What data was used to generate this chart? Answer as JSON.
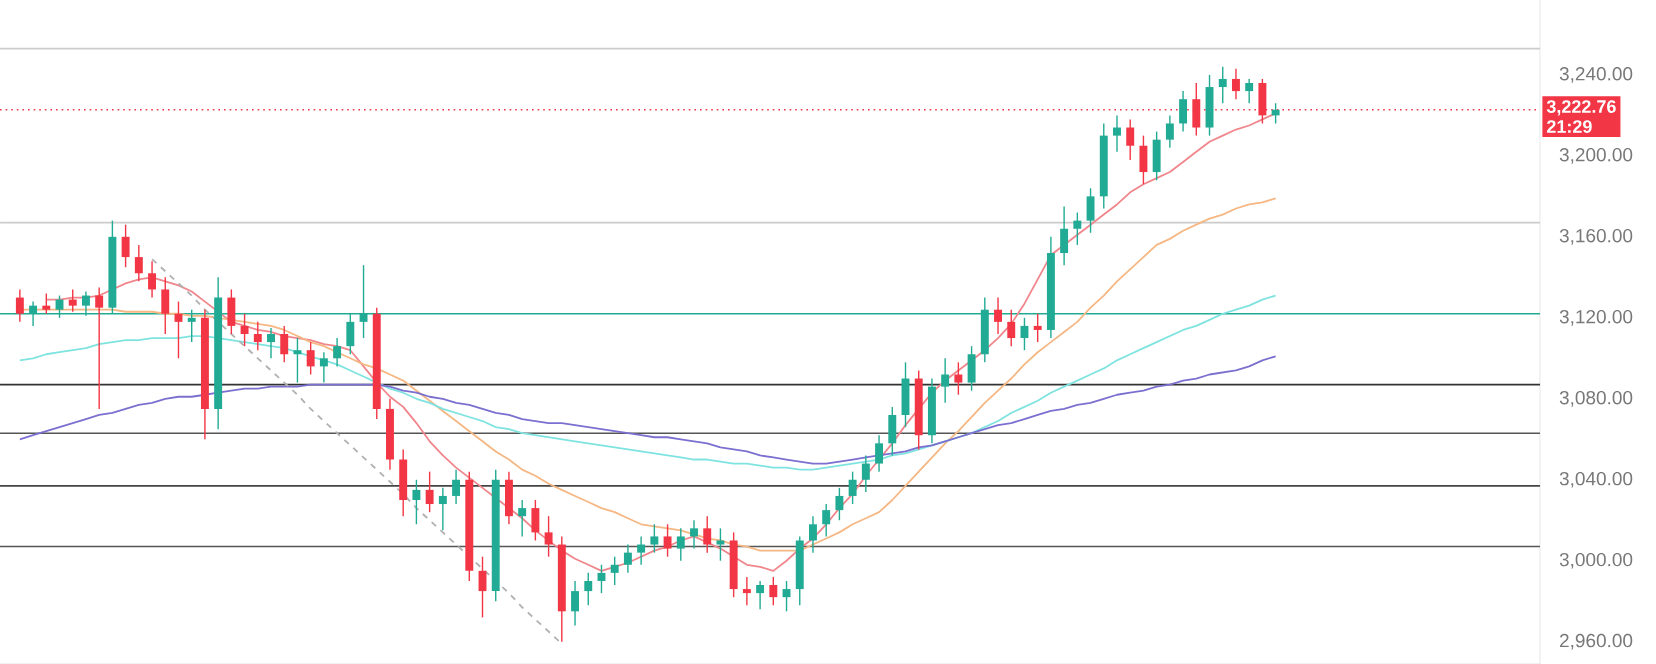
{
  "chart_data": {
    "type": "candlestick",
    "categories": [
      null,
      null,
      null,
      null,
      null,
      null,
      null,
      null,
      null,
      null,
      null,
      null,
      null,
      null,
      null,
      null,
      null,
      null,
      null,
      null,
      null,
      null,
      null,
      null,
      null,
      null,
      null,
      null,
      null,
      null,
      null,
      null,
      null,
      null,
      null,
      null,
      null,
      null,
      null,
      null,
      null,
      null,
      null,
      null,
      null,
      null,
      null,
      null,
      null,
      null,
      null,
      null,
      null,
      null,
      null,
      null,
      null,
      null,
      null,
      null,
      null,
      null,
      null,
      null,
      null,
      null,
      null,
      null,
      null,
      null,
      null,
      null,
      null,
      null,
      null,
      null,
      null,
      null,
      null,
      null,
      null,
      null,
      null,
      null,
      null,
      null,
      null,
      null,
      null,
      null,
      null,
      null,
      null,
      null,
      null,
      null
    ],
    "ohlc": [
      [
        3130,
        3134,
        3118,
        3122
      ],
      [
        3122,
        3128,
        3116,
        3126
      ],
      [
        3126,
        3132,
        3122,
        3124
      ],
      [
        3124,
        3131,
        3120,
        3129
      ],
      [
        3129,
        3134,
        3123,
        3126
      ],
      [
        3126,
        3133,
        3121,
        3131
      ],
      [
        3131,
        3135,
        3075,
        3125
      ],
      [
        3125,
        3168,
        3122,
        3160
      ],
      [
        3160,
        3166,
        3145,
        3150
      ],
      [
        3150,
        3156,
        3138,
        3142
      ],
      [
        3142,
        3148,
        3130,
        3134
      ],
      [
        3134,
        3140,
        3112,
        3122
      ],
      [
        3122,
        3128,
        3100,
        3118
      ],
      [
        3118,
        3124,
        3108,
        3120
      ],
      [
        3120,
        3124,
        3060,
        3075
      ],
      [
        3075,
        3140,
        3065,
        3130
      ],
      [
        3130,
        3134,
        3112,
        3116
      ],
      [
        3116,
        3122,
        3106,
        3112
      ],
      [
        3112,
        3118,
        3104,
        3108
      ],
      [
        3108,
        3115,
        3100,
        3112
      ],
      [
        3112,
        3116,
        3098,
        3102
      ],
      [
        3102,
        3110,
        3088,
        3104
      ],
      [
        3104,
        3108,
        3092,
        3096
      ],
      [
        3096,
        3103,
        3088,
        3100
      ],
      [
        3100,
        3110,
        3096,
        3106
      ],
      [
        3106,
        3122,
        3102,
        3118
      ],
      [
        3118,
        3146,
        3110,
        3122
      ],
      [
        3122,
        3125,
        3070,
        3075
      ],
      [
        3075,
        3080,
        3045,
        3050
      ],
      [
        3050,
        3055,
        3022,
        3030
      ],
      [
        3030,
        3040,
        3018,
        3035
      ],
      [
        3035,
        3044,
        3024,
        3028
      ],
      [
        3028,
        3036,
        3015,
        3032
      ],
      [
        3032,
        3045,
        3028,
        3040
      ],
      [
        3040,
        3044,
        2990,
        2995
      ],
      [
        2995,
        3002,
        2972,
        2985
      ],
      [
        2985,
        3045,
        2980,
        3040
      ],
      [
        3040,
        3044,
        3018,
        3022
      ],
      [
        3022,
        3030,
        3012,
        3026
      ],
      [
        3026,
        3030,
        3010,
        3014
      ],
      [
        3014,
        3022,
        3002,
        3008
      ],
      [
        3008,
        3012,
        2960,
        2975
      ],
      [
        2975,
        2990,
        2968,
        2985
      ],
      [
        2985,
        2994,
        2978,
        2990
      ],
      [
        2990,
        2998,
        2984,
        2994
      ],
      [
        2994,
        3002,
        2988,
        2998
      ],
      [
        2998,
        3008,
        2994,
        3004
      ],
      [
        3004,
        3012,
        2998,
        3008
      ],
      [
        3008,
        3018,
        3004,
        3012
      ],
      [
        3012,
        3018,
        3002,
        3006
      ],
      [
        3006,
        3016,
        3000,
        3012
      ],
      [
        3012,
        3020,
        3006,
        3016
      ],
      [
        3016,
        3022,
        3004,
        3008
      ],
      [
        3008,
        3016,
        3000,
        3010
      ],
      [
        3010,
        3014,
        2982,
        2986
      ],
      [
        2986,
        2992,
        2978,
        2984
      ],
      [
        2984,
        2990,
        2976,
        2988
      ],
      [
        2988,
        2992,
        2978,
        2982
      ],
      [
        2982,
        2990,
        2975,
        2986
      ],
      [
        2986,
        3012,
        2978,
        3010
      ],
      [
        3010,
        3022,
        3004,
        3018
      ],
      [
        3018,
        3028,
        3012,
        3025
      ],
      [
        3025,
        3036,
        3020,
        3032
      ],
      [
        3032,
        3044,
        3028,
        3040
      ],
      [
        3040,
        3052,
        3034,
        3048
      ],
      [
        3048,
        3062,
        3044,
        3058
      ],
      [
        3058,
        3076,
        3052,
        3072
      ],
      [
        3072,
        3098,
        3066,
        3090
      ],
      [
        3090,
        3094,
        3055,
        3062
      ],
      [
        3062,
        3090,
        3058,
        3086
      ],
      [
        3086,
        3100,
        3078,
        3092
      ],
      [
        3092,
        3098,
        3082,
        3088
      ],
      [
        3088,
        3106,
        3084,
        3102
      ],
      [
        3102,
        3130,
        3098,
        3124
      ],
      [
        3124,
        3130,
        3112,
        3118
      ],
      [
        3118,
        3124,
        3106,
        3110
      ],
      [
        3110,
        3120,
        3104,
        3116
      ],
      [
        3116,
        3122,
        3108,
        3114
      ],
      [
        3114,
        3160,
        3110,
        3152
      ],
      [
        3152,
        3175,
        3146,
        3164
      ],
      [
        3164,
        3172,
        3156,
        3168
      ],
      [
        3168,
        3184,
        3162,
        3180
      ],
      [
        3180,
        3216,
        3174,
        3210
      ],
      [
        3210,
        3220,
        3202,
        3214
      ],
      [
        3214,
        3218,
        3198,
        3205
      ],
      [
        3205,
        3210,
        3186,
        3192
      ],
      [
        3192,
        3212,
        3188,
        3208
      ],
      [
        3208,
        3220,
        3204,
        3216
      ],
      [
        3216,
        3232,
        3212,
        3228
      ],
      [
        3228,
        3236,
        3210,
        3214
      ],
      [
        3214,
        3240,
        3210,
        3234
      ],
      [
        3234,
        3244,
        3226,
        3238
      ],
      [
        3238,
        3243,
        3228,
        3232
      ],
      [
        3232,
        3238,
        3226,
        3236
      ],
      [
        3236,
        3238,
        3216,
        3220
      ],
      [
        3220,
        3226,
        3216,
        3222.76
      ]
    ],
    "series": [
      {
        "type": "line",
        "color": "#f0868c",
        "values": [
          null,
          null,
          3129,
          3129,
          3130,
          3130,
          3131,
          3134,
          3137,
          3139,
          3140,
          3138,
          3136,
          3133,
          3128,
          3123,
          3118,
          3116,
          3114,
          3113,
          3111,
          3110,
          3109,
          3107,
          3106,
          3104,
          3096,
          3088,
          3081,
          3076,
          3068,
          3059,
          3052,
          3046,
          3041,
          3036,
          3031,
          3026,
          3021,
          3015,
          3010,
          3005,
          3001,
          2998,
          2995,
          2997,
          2999,
          3002,
          3005,
          3007,
          3010,
          3012,
          3009,
          3006,
          3002,
          2998,
          2997,
          2995,
          3000,
          3006,
          3011,
          3018,
          3026,
          3033,
          3042,
          3050,
          3058,
          3067,
          3075,
          3083,
          3089,
          3094,
          3099,
          3104,
          3110,
          3117,
          3127,
          3139,
          3151,
          3156,
          3161,
          3166,
          3171,
          3176,
          3182,
          3186,
          3189,
          3192,
          3197,
          3202,
          3207,
          3210,
          3213,
          3215,
          3218,
          3221
        ]
      },
      {
        "type": "line",
        "color": "#f5b783",
        "values": [
          3124,
          3124,
          3124,
          3124,
          3124,
          3124,
          3124,
          3124,
          3123,
          3123,
          3123,
          3122,
          3122,
          3121,
          3121,
          3120,
          3119,
          3118,
          3117,
          3116,
          3114,
          3111,
          3108,
          3106,
          3103,
          3100,
          3097,
          3095,
          3092,
          3089,
          3084,
          3079,
          3074,
          3069,
          3064,
          3059,
          3054,
          3050,
          3045,
          3042,
          3038,
          3035,
          3032,
          3029,
          3026,
          3024,
          3021,
          3018,
          3017,
          3016,
          3015,
          3013,
          3011,
          3010,
          3008,
          3007,
          3005,
          3005,
          3005,
          3005,
          3008,
          3011,
          3014,
          3018,
          3021,
          3024,
          3030,
          3037,
          3044,
          3051,
          3058,
          3064,
          3071,
          3078,
          3084,
          3090,
          3097,
          3103,
          3108,
          3113,
          3118,
          3125,
          3131,
          3138,
          3144,
          3150,
          3156,
          3159,
          3163,
          3166,
          3169,
          3171,
          3174,
          3176,
          3177,
          3179
        ]
      },
      {
        "type": "line",
        "color": "#7fe3e0",
        "values": [
          3099,
          3100,
          3102,
          3103,
          3104,
          3105,
          3107,
          3108,
          3109,
          3109,
          3110,
          3110,
          3110,
          3111,
          3111,
          3110,
          3109,
          3108,
          3107,
          3106,
          3105,
          3103,
          3101,
          3099,
          3097,
          3094,
          3091,
          3088,
          3085,
          3083,
          3080,
          3078,
          3075,
          3073,
          3071,
          3069,
          3066,
          3065,
          3063,
          3062,
          3061,
          3060,
          3059,
          3058,
          3057,
          3056,
          3055,
          3054,
          3053,
          3052,
          3051,
          3050,
          3050,
          3049,
          3048,
          3048,
          3047,
          3046,
          3046,
          3045,
          3045,
          3046,
          3047,
          3048,
          3049,
          3050,
          3052,
          3053,
          3055,
          3057,
          3059,
          3061,
          3063,
          3066,
          3069,
          3073,
          3076,
          3079,
          3083,
          3086,
          3089,
          3092,
          3095,
          3099,
          3102,
          3105,
          3108,
          3111,
          3114,
          3116,
          3119,
          3122,
          3124,
          3126,
          3129,
          3131
        ]
      },
      {
        "type": "line",
        "color": "#7b6fd0",
        "values": [
          3060,
          3062,
          3064,
          3066,
          3068,
          3070,
          3072,
          3073,
          3075,
          3077,
          3078,
          3080,
          3081,
          3081,
          3082,
          3083,
          3084,
          3085,
          3085,
          3086,
          3086,
          3086,
          3087,
          3087,
          3087,
          3087,
          3087,
          3087,
          3086,
          3084,
          3083,
          3081,
          3080,
          3078,
          3077,
          3075,
          3073,
          3072,
          3070,
          3069,
          3068,
          3068,
          3067,
          3066,
          3065,
          3064,
          3063,
          3062,
          3061,
          3061,
          3060,
          3059,
          3058,
          3056,
          3055,
          3054,
          3052,
          3051,
          3050,
          3049,
          3048,
          3048,
          3049,
          3050,
          3051,
          3052,
          3053,
          3054,
          3056,
          3057,
          3059,
          3061,
          3063,
          3065,
          3067,
          3068,
          3070,
          3072,
          3074,
          3075,
          3077,
          3078,
          3080,
          3082,
          3083,
          3084,
          3086,
          3087,
          3089,
          3090,
          3092,
          3093,
          3094,
          3096,
          3099,
          3101
        ]
      },
      {
        "type": "line",
        "color": "#b0b0b0",
        "line_style": "dashed",
        "values": [
          null,
          null,
          null,
          null,
          null,
          null,
          null,
          null,
          null,
          null,
          3149,
          3143,
          3137,
          3131,
          3124,
          3118,
          3112,
          3106,
          3100,
          3094,
          3088,
          3082,
          3075,
          3069,
          3063,
          3057,
          3051,
          3045,
          3039,
          3033,
          3026,
          3020,
          3014,
          3008,
          3002,
          2996,
          2990,
          2984,
          2977,
          2971,
          2965,
          2959,
          null,
          null,
          null,
          null,
          null,
          null,
          null,
          null,
          null,
          null,
          null,
          null,
          null,
          null,
          null,
          null,
          null,
          null,
          null,
          null,
          null,
          null,
          null,
          null,
          null,
          null,
          null,
          null,
          null,
          null,
          null,
          null,
          null,
          null,
          null,
          null,
          null,
          null,
          null,
          null,
          null,
          null,
          null,
          null,
          null,
          null,
          null,
          null,
          null,
          null,
          null,
          null,
          null,
          null
        ]
      }
    ],
    "ref_lines": [
      {
        "axis": "y",
        "value": 3253,
        "color": "#cccccc"
      },
      {
        "axis": "y",
        "value": 3167,
        "color": "#cccccc"
      },
      {
        "axis": "y",
        "value": 3122,
        "color": "#22ab94"
      },
      {
        "axis": "y",
        "value": 3087,
        "color": "#333333"
      },
      {
        "axis": "y",
        "value": 3063,
        "color": "#555555"
      },
      {
        "axis": "y",
        "value": 3037,
        "color": "#444444"
      },
      {
        "axis": "y",
        "value": 3007,
        "color": "#555555"
      },
      {
        "axis": "y",
        "value": 3222.76,
        "color": "#f23645",
        "line_style": "dotted",
        "label": "3,222.76"
      }
    ],
    "annotations": [
      "21:29"
    ],
    "ylim": [
      2949,
      3277
    ],
    "yticks": [
      {
        "value": 2960,
        "label": "2,960.00"
      },
      {
        "value": 3000,
        "label": "3,000.00"
      },
      {
        "value": 3040,
        "label": "3,040.00"
      },
      {
        "value": 3080,
        "label": "3,080.00"
      },
      {
        "value": 3120,
        "label": "3,120.00"
      },
      {
        "value": 3160,
        "label": "3,160.00"
      },
      {
        "value": 3200,
        "label": "3,200.00"
      },
      {
        "value": 3240,
        "label": "3,240.00"
      }
    ],
    "tick_labels": "y",
    "grid": false
  }
}
